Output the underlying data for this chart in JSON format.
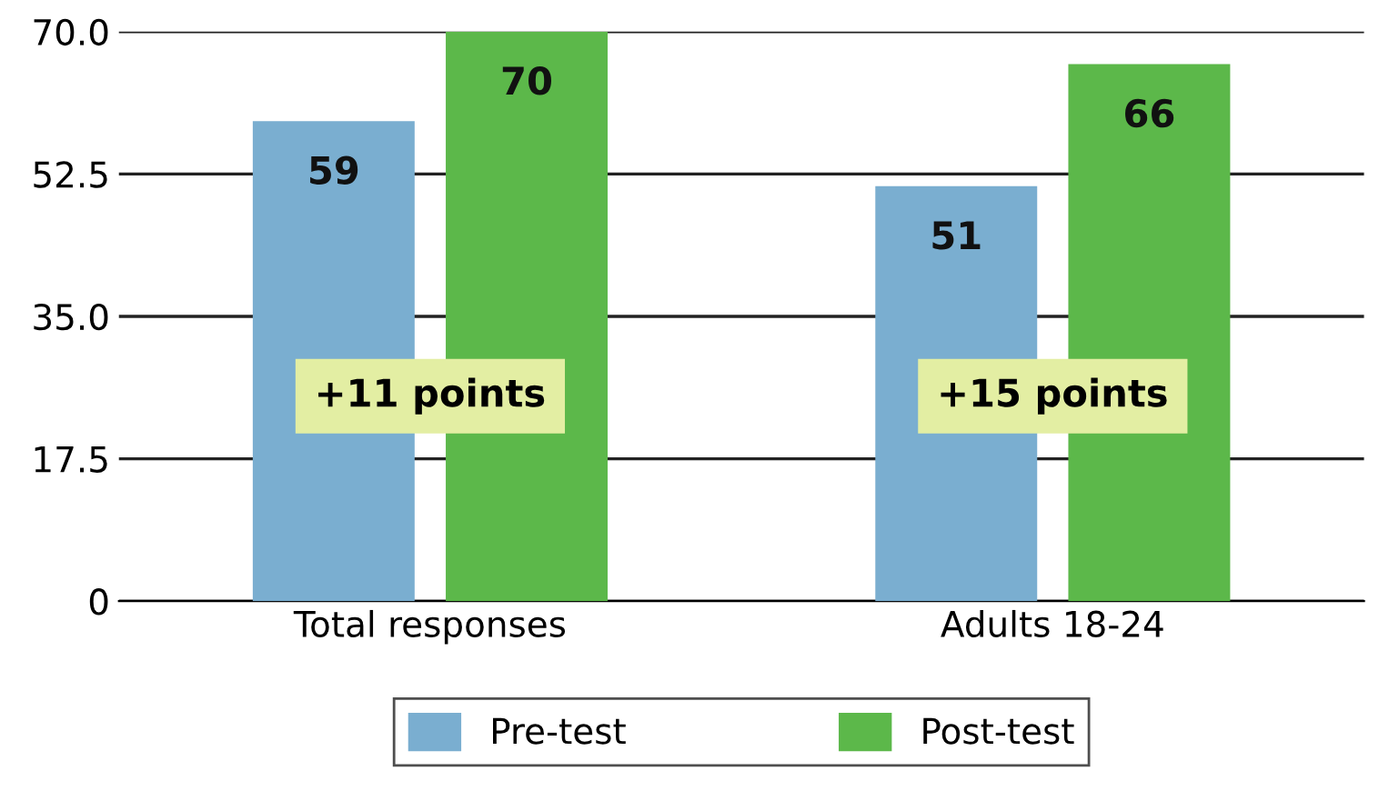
{
  "chart_data": {
    "type": "bar",
    "categories": [
      "Total responses",
      "Adults 18-24"
    ],
    "series": [
      {
        "name": "Pre-test",
        "color": "#7aaed0",
        "values": [
          59,
          51
        ]
      },
      {
        "name": "Post-test",
        "color": "#5cb84a",
        "values": [
          70,
          66
        ]
      }
    ],
    "ylim": [
      0,
      70
    ],
    "yticks": [
      0,
      17.5,
      {
        "value": 35,
        "label": "35.0"
      },
      52.5,
      {
        "value": 70,
        "label": "70.0"
      }
    ],
    "grid": "y",
    "legend": "bottom",
    "data_labels": true,
    "annotations": [
      "+11 points",
      "+15 points"
    ]
  }
}
